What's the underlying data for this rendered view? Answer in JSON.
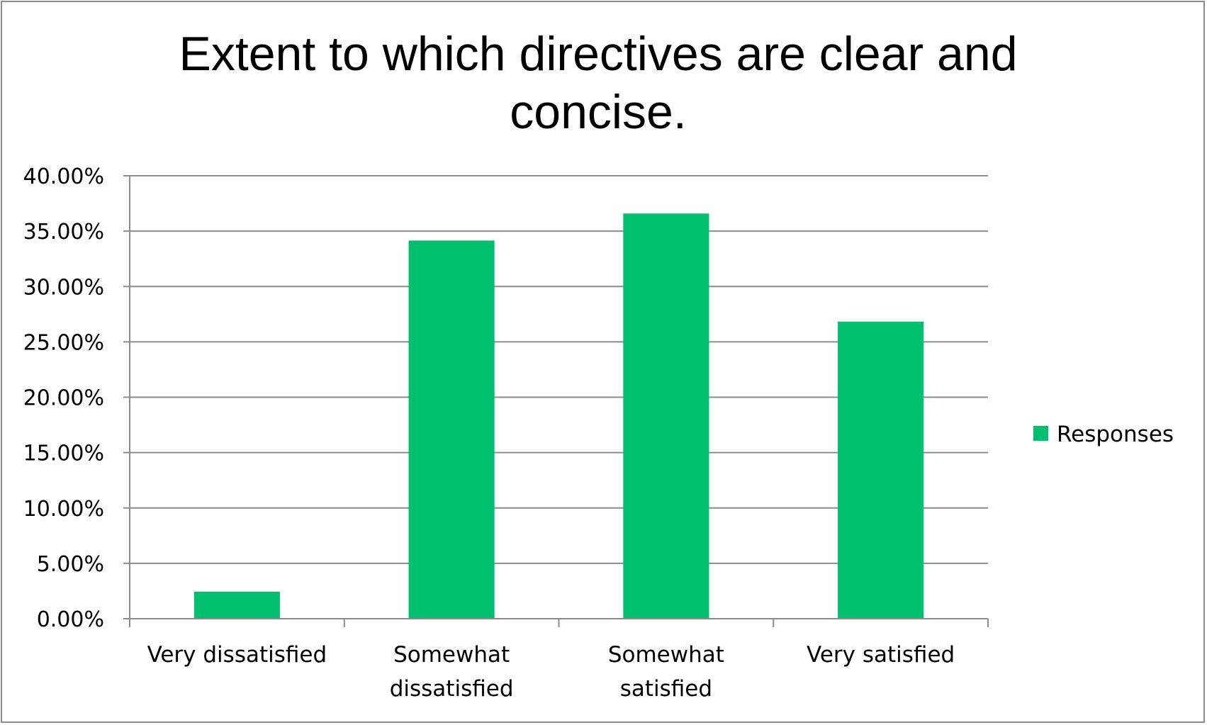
{
  "chart_data": {
    "type": "bar",
    "title_lines": [
      "Extent to which directives are clear and",
      "concise."
    ],
    "categories": [
      [
        "Very dissatisfied"
      ],
      [
        "Somewhat",
        "dissatisfied"
      ],
      [
        "Somewhat",
        "satisfied"
      ],
      [
        "Very satisfied"
      ]
    ],
    "series": [
      {
        "name": "Responses",
        "color": "#00bf6f",
        "values": [
          2.44,
          34.15,
          36.59,
          26.83
        ]
      }
    ],
    "ylim": [
      0,
      40
    ],
    "yticks": [
      0,
      5,
      10,
      15,
      20,
      25,
      30,
      35,
      40
    ],
    "ytick_labels": [
      "0.00%",
      "5.00%",
      "10.00%",
      "15.00%",
      "20.00%",
      "25.00%",
      "30.00%",
      "35.00%",
      "40.00%"
    ],
    "y_unit": "%",
    "grid": true,
    "legend_position": "right",
    "xlabel": "",
    "ylabel": ""
  },
  "colors": {
    "bar": "#00bf6f",
    "grid": "#8c8c8c",
    "frame": "#8c8c8c"
  }
}
